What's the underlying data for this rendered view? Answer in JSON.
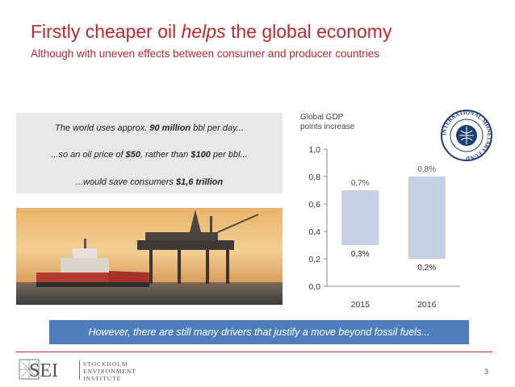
{
  "slide": {
    "title_prefix": "Firstly cheaper oil ",
    "title_emph": "helps",
    "title_suffix": " the global economy",
    "subtitle": "Although with uneven effects between consumer and producer countries",
    "page_number": "3"
  },
  "quote": {
    "line1": {
      "pre": "The world uses approx. ",
      "bold": "90 million",
      "post": " bbl per day..."
    },
    "line2": {
      "pre": "...so an oil price of ",
      "bold1": "$50",
      "mid": ", rather than ",
      "bold2": "$100",
      "post": " per bbl..."
    },
    "line3": {
      "pre": "...would save consumers ",
      "bold": "$1,6 trillion"
    }
  },
  "banner": "However, there are still many drivers that justify a move beyond fossil fuels...",
  "logos": {
    "imf_text": "INTERNATIONAL MONETARY FUND",
    "sei_letters": "SEI",
    "sei_line1": "STOCKHOLM",
    "sei_line2": "ENVIRONMENT",
    "sei_line3": "INSTITUTE"
  },
  "chart_data": {
    "type": "bar",
    "title": "",
    "caption_line1": "Global GDP",
    "caption_line2": "points increase",
    "categories": [
      "2015",
      "2016"
    ],
    "bars": [
      {
        "low": 0.3,
        "high": 0.7,
        "low_label": "0,3%",
        "high_label": "0,7%"
      },
      {
        "low": 0.2,
        "high": 0.8,
        "low_label": "0,2%",
        "high_label": "0,8%"
      }
    ],
    "ylim": [
      0,
      1.0
    ],
    "yticks": [
      0.0,
      0.2,
      0.4,
      0.6,
      0.8,
      1.0
    ],
    "ytick_labels": [
      "0,0",
      "0,2",
      "0,4",
      "0,6",
      "0,8",
      "1,0"
    ],
    "grid": false,
    "bar_color": "#c5d1e3"
  },
  "colors": {
    "accent_red": "#c0282d",
    "banner_blue": "#4e7fbc"
  }
}
